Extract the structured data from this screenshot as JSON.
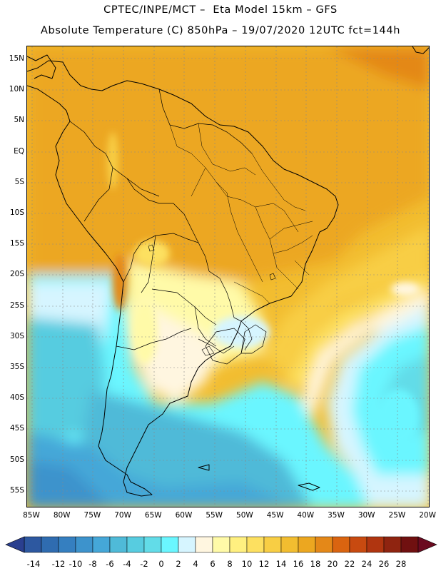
{
  "header": {
    "line1": "CPTEC/INPE/MCT –  Eta Model 15km – GFS",
    "line2": "Absolute Temperature (C) 850hPa – 19/07/2020 12UTC fct=144h"
  },
  "map": {
    "lat_labels": [
      "15N",
      "10N",
      "5N",
      "EQ",
      "5S",
      "10S",
      "15S",
      "20S",
      "25S",
      "30S",
      "35S",
      "40S",
      "45S",
      "50S",
      "55S"
    ],
    "lon_labels": [
      "85W",
      "80W",
      "75W",
      "70W",
      "65W",
      "60W",
      "55W",
      "50W",
      "45W",
      "40W",
      "35W",
      "30W",
      "25W",
      "20W"
    ]
  },
  "colorbar": {
    "labels": [
      "-14",
      "-12",
      "-10",
      "-8",
      "-6",
      "-4",
      "-2",
      "0",
      "2",
      "4",
      "6",
      "8",
      "10",
      "12",
      "14",
      "16",
      "18",
      "20",
      "22",
      "24",
      "26",
      "28"
    ],
    "colors": [
      "#2d58a0",
      "#2f6cb0",
      "#357fc0",
      "#3d93cc",
      "#45a7d8",
      "#4fbad8",
      "#57cce0",
      "#62dce8",
      "#6af6ff",
      "#d6f5ff",
      "#fff6e0",
      "#fffaa8",
      "#fff080",
      "#fde060",
      "#f8ce44",
      "#f2bd30",
      "#eca720",
      "#e48818",
      "#da6410",
      "#c84a10",
      "#b03510",
      "#8f2410",
      "#701010"
    ],
    "under_color": "#2a3f8f",
    "over_color": "#6b0a20"
  }
}
